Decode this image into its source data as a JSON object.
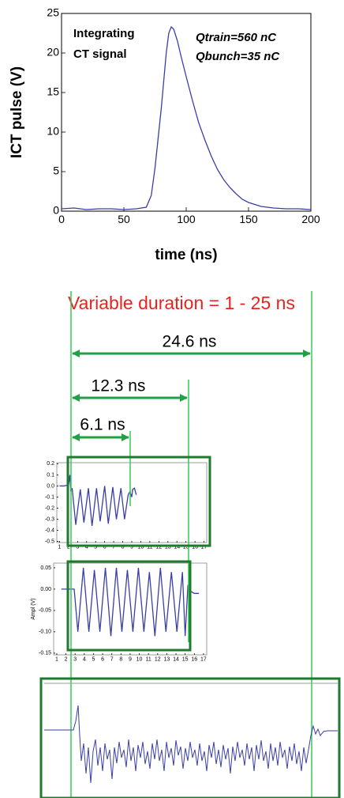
{
  "chart_data": [
    {
      "type": "line",
      "ylabel": "ICT pulse (V)",
      "xlabel": "time (ns)",
      "annotations": [
        "Integrating",
        "CT signal",
        "Qtrain=560 nC",
        "Qbunch=35 nC"
      ],
      "x": [
        0,
        10,
        20,
        30,
        40,
        50,
        60,
        68,
        72,
        75,
        78,
        80,
        82,
        84,
        86,
        88,
        90,
        93,
        96,
        100,
        105,
        110,
        115,
        120,
        125,
        130,
        135,
        140,
        145,
        150,
        160,
        170,
        180,
        190,
        200
      ],
      "values": [
        0.3,
        0.4,
        0.2,
        0.3,
        0.3,
        0.2,
        0.3,
        0.5,
        2,
        5.5,
        10,
        13,
        16.5,
        20,
        22.5,
        23.3,
        23,
        21.5,
        19.5,
        17,
        14,
        11.2,
        9,
        7,
        5.3,
        4,
        3,
        2.2,
        1.5,
        1.1,
        0.6,
        0.4,
        0.3,
        0.3,
        0.2
      ],
      "color": "#3a3fa8",
      "xlim": [
        0,
        200
      ],
      "ylim": [
        0,
        25
      ],
      "xticks": [
        0,
        50,
        100,
        150,
        200
      ],
      "yticks": [
        0,
        5,
        10,
        15,
        20,
        25
      ]
    },
    {
      "type": "line",
      "x": [
        1,
        1.5,
        2,
        2.15,
        2.25,
        2.4,
        2.8,
        3.3,
        3.7,
        4.2,
        4.6,
        5.1,
        5.5,
        6.0,
        6.4,
        6.9,
        7.3,
        7.8,
        8.2,
        8.6,
        8.8,
        9.0,
        9.1,
        9.3,
        9.5
      ],
      "values": [
        0,
        0,
        0.01,
        0.1,
        -0.05,
        -0.02,
        -0.35,
        -0.03,
        -0.33,
        -0.02,
        -0.36,
        -0.02,
        -0.32,
        0.0,
        -0.34,
        -0.01,
        -0.3,
        -0.02,
        -0.3,
        -0.08,
        -0.05,
        -0.1,
        -0.03,
        -0.02,
        -0.08
      ],
      "color": "#3a3fa8",
      "xlim": [
        0.7,
        17.3
      ],
      "ylim": [
        -0.51,
        0.21
      ],
      "xticks": [
        1,
        2,
        3,
        4,
        5,
        6,
        7,
        8,
        9,
        10,
        11,
        12,
        13,
        14,
        15,
        16,
        17
      ],
      "yticks": [
        0.2,
        0.1,
        {
          "value": 0,
          "label": "0.0"
        },
        -0.1,
        -0.2,
        -0.3,
        -0.4,
        -0.5
      ]
    },
    {
      "type": "line",
      "ylabel": "Ampl (V)",
      "x": [
        1.5,
        2.5,
        2.9,
        3.3,
        3.9,
        4.5,
        5.1,
        5.7,
        6.3,
        6.9,
        7.5,
        8.1,
        8.7,
        9.3,
        9.9,
        10.5,
        11.1,
        11.7,
        12.3,
        12.9,
        13.5,
        14.1,
        14.7,
        15.0,
        15.3,
        15.6,
        16.0,
        16.5
      ],
      "values": [
        0,
        0,
        0,
        -0.1,
        0.05,
        -0.1,
        0.045,
        -0.1,
        0.05,
        -0.11,
        0.05,
        -0.1,
        0.045,
        -0.1,
        0.05,
        -0.1,
        0.04,
        -0.11,
        0.05,
        -0.1,
        0.04,
        -0.1,
        0.04,
        -0.11,
        0.01,
        -0.005,
        -0.01,
        -0.01
      ],
      "color": "#3a3fa8",
      "xlim": [
        0.66,
        17.35
      ],
      "ylim": [
        -0.154,
        0.061
      ],
      "xticks": [
        1,
        2,
        3,
        4,
        5,
        6,
        7,
        8,
        9,
        10,
        11,
        12,
        13,
        14,
        15,
        16,
        17
      ],
      "yticks": [
        0.05,
        {
          "value": 0,
          "label": "0.00"
        },
        -0.05,
        {
          "value": -0.1,
          "label": "-0.10"
        },
        -0.15
      ]
    }
  ],
  "diagram": {
    "title": "Variable duration = 1 - 25 ns",
    "arrows": [
      {
        "label": "24.6 ns"
      },
      {
        "label": "12.3 ns"
      },
      {
        "label": "6.1 ns"
      }
    ]
  }
}
